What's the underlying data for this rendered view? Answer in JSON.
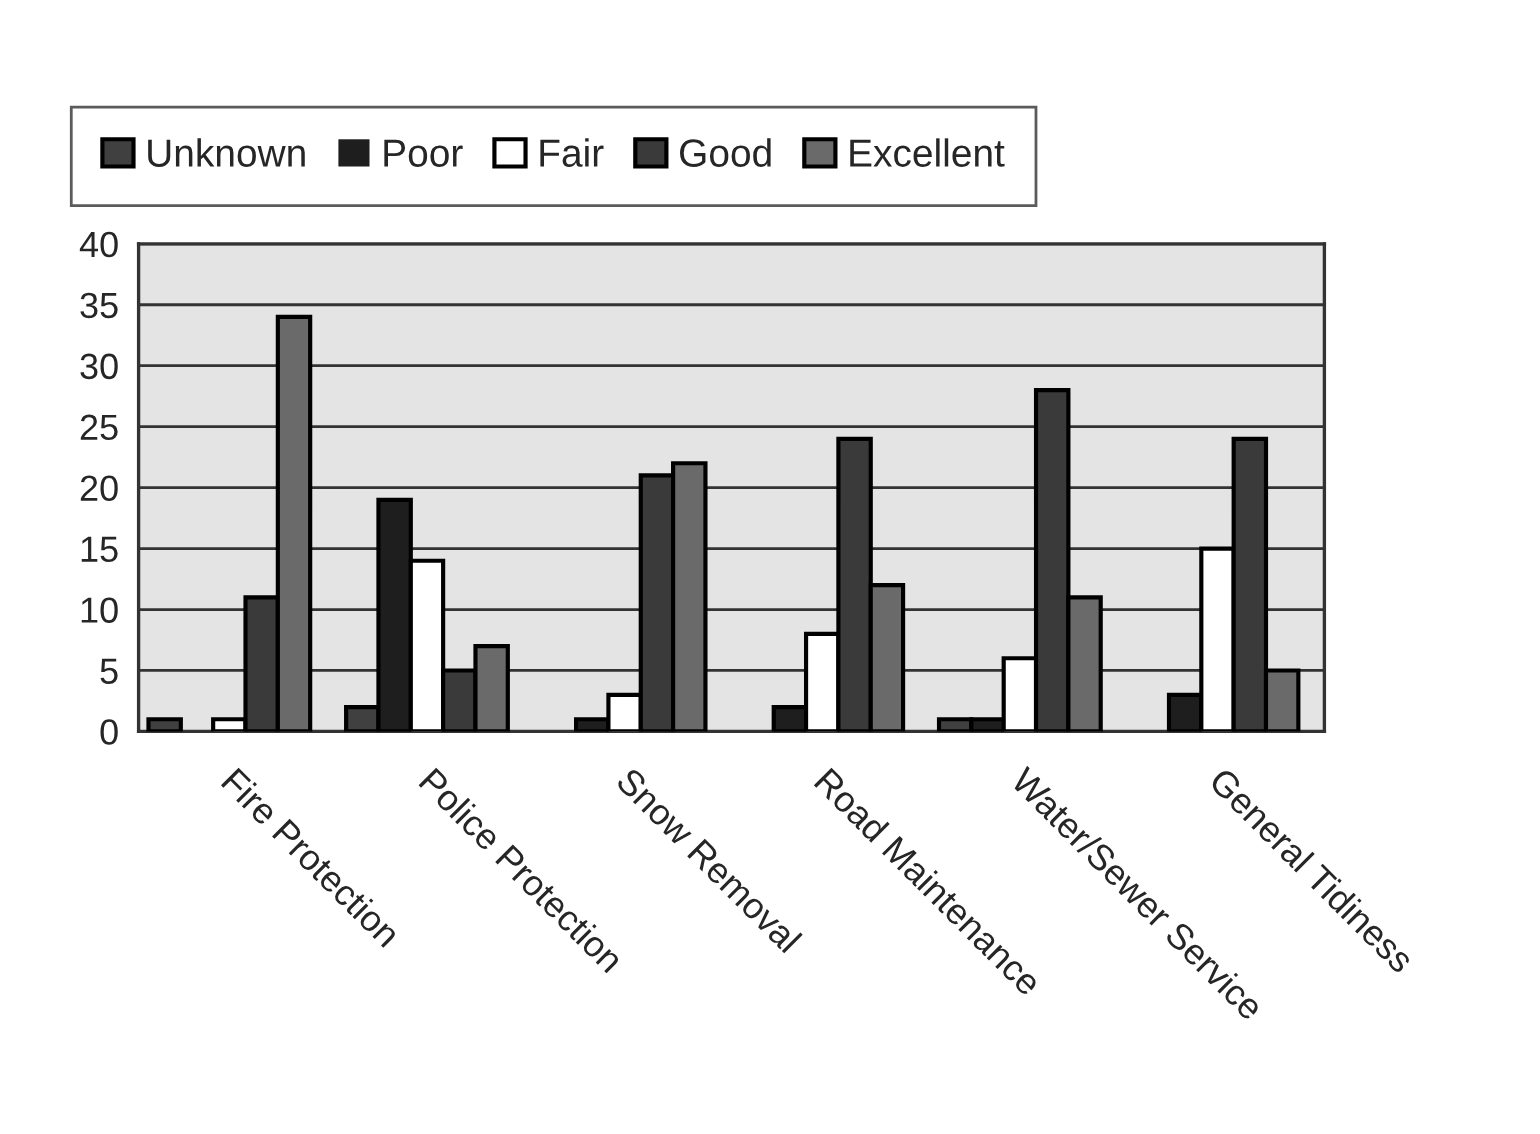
{
  "chart_data": {
    "type": "bar",
    "categories": [
      "Fire Protection",
      "Police Protection",
      "Snow Removal",
      "Road Maintenance",
      "Water/Sewer Service",
      "General Tidiness"
    ],
    "series": [
      {
        "name": "Unknown",
        "color": "#404040",
        "values": [
          1,
          2,
          0,
          0,
          1,
          0
        ]
      },
      {
        "name": "Poor",
        "color": "#1e1e1e",
        "values": [
          0,
          19,
          1,
          2,
          1,
          3
        ]
      },
      {
        "name": "Fair",
        "color": "#ffffff",
        "values": [
          1,
          14,
          3,
          8,
          6,
          15
        ]
      },
      {
        "name": "Good",
        "color": "#3a3a3a",
        "values": [
          11,
          5,
          21,
          24,
          28,
          24
        ]
      },
      {
        "name": "Excellent",
        "color": "#6a6a6a",
        "values": [
          34,
          7,
          22,
          12,
          11,
          5
        ]
      }
    ],
    "ylim": [
      0,
      40
    ],
    "yticks": [
      0,
      5,
      10,
      15,
      20,
      25,
      30,
      35,
      40
    ],
    "grid": "y",
    "legend": "top"
  }
}
